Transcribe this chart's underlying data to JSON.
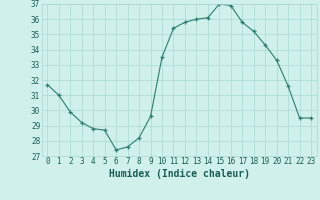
{
  "x": [
    0,
    1,
    2,
    3,
    4,
    5,
    6,
    7,
    8,
    9,
    10,
    11,
    12,
    13,
    14,
    15,
    16,
    17,
    18,
    19,
    20,
    21,
    22,
    23
  ],
  "y": [
    31.7,
    31.0,
    29.9,
    29.2,
    28.8,
    28.7,
    27.4,
    27.6,
    28.2,
    29.6,
    33.5,
    35.4,
    35.8,
    36.0,
    36.1,
    37.0,
    36.9,
    35.8,
    35.2,
    34.3,
    33.3,
    31.6,
    29.5,
    29.5
  ],
  "xlabel": "Humidex (Indice chaleur)",
  "ylim": [
    27,
    37
  ],
  "xlim_min": -0.5,
  "xlim_max": 23.5,
  "yticks": [
    27,
    28,
    29,
    30,
    31,
    32,
    33,
    34,
    35,
    36,
    37
  ],
  "xticks": [
    0,
    1,
    2,
    3,
    4,
    5,
    6,
    7,
    8,
    9,
    10,
    11,
    12,
    13,
    14,
    15,
    16,
    17,
    18,
    19,
    20,
    21,
    22,
    23
  ],
  "line_color": "#2e7d6e",
  "marker": "+",
  "bg_color": "#cff0eb",
  "grid_color": "#aad8d2",
  "label_color": "#1a5c52",
  "tick_label_fontsize": 5.5,
  "xlabel_fontsize": 7.0
}
